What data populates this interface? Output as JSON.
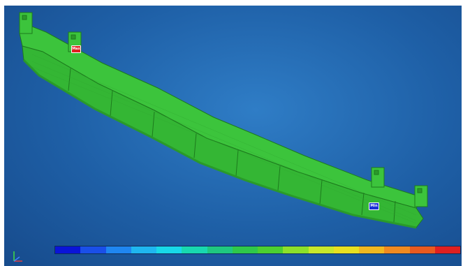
{
  "viewport": {
    "background": "#1e5fa6"
  },
  "model": {
    "color": "#3cc43c",
    "edge_color": "#1d7a1d"
  },
  "markers": {
    "max_label": "Max",
    "max_color": "#e02020",
    "min_label": "Min",
    "min_color": "#1a2fd6"
  },
  "legend": {
    "colors": [
      "#0a14d8",
      "#1a4fe8",
      "#1f86f0",
      "#1fb6f0",
      "#18d8e8",
      "#18d8b0",
      "#1fc880",
      "#2fc84a",
      "#4cd030",
      "#8ce02a",
      "#c8e82a",
      "#e8e020",
      "#f0b820",
      "#f08a20",
      "#e85a20",
      "#e02020"
    ],
    "ticks": [
      "",
      "",
      "",
      "",
      "",
      "",
      "",
      "",
      "",
      "",
      "",
      "",
      "",
      "",
      "",
      ""
    ]
  }
}
